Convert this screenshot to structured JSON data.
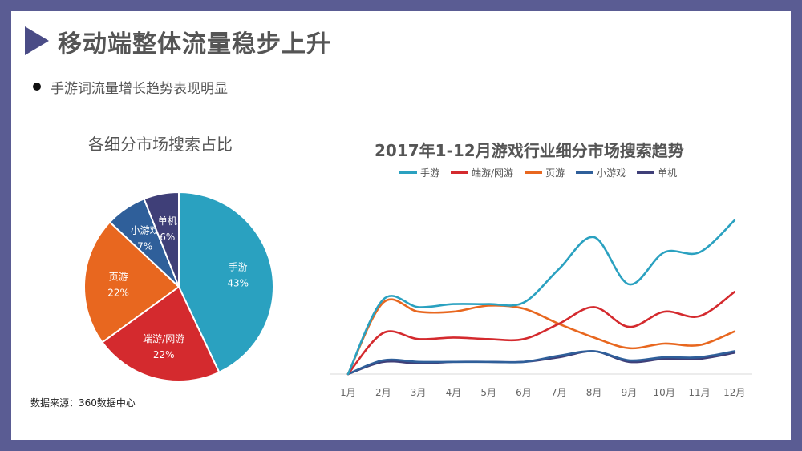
{
  "header": {
    "title": "移动端整体流量稳步上升",
    "bullet": "手游词流量增长趋势表现明显"
  },
  "footer": {
    "source": "数据来源：360数据中心"
  },
  "colors": {
    "frame": "#5a5c93",
    "marker": "#4a4c86",
    "手游": "#2aa1c0",
    "端游/网游": "#d42a2e",
    "页游": "#e8671f",
    "小游戏": "#2f5f9a",
    "单机": "#3f3f78"
  },
  "chart_data": [
    {
      "type": "pie",
      "title": "各细分市场搜索占比",
      "slices": [
        {
          "label": "手游",
          "value": 43,
          "value_label": "43%"
        },
        {
          "label": "端游/网游",
          "value": 22,
          "value_label": "22%"
        },
        {
          "label": "页游",
          "value": 22,
          "value_label": "22%"
        },
        {
          "label": "小游戏",
          "value": 7,
          "value_label": "7%"
        },
        {
          "label": "单机",
          "value": 6,
          "value_label": "6%"
        }
      ]
    },
    {
      "type": "line",
      "title": "2017年1-12月游戏行业细分市场搜索趋势",
      "categories": [
        "1月",
        "2月",
        "3月",
        "4月",
        "5月",
        "6月",
        "7月",
        "8月",
        "9月",
        "10月",
        "11月",
        "12月"
      ],
      "legend_position": "top",
      "grid": false,
      "y_axis_visible": false,
      "series": [
        {
          "name": "手游",
          "values": [
            0,
            49,
            44,
            46,
            46,
            47,
            69,
            90,
            59,
            80,
            80,
            101
          ]
        },
        {
          "name": "端游/网游",
          "values": [
            0,
            27,
            23,
            24,
            23,
            23,
            33,
            44,
            31,
            41,
            38,
            54
          ]
        },
        {
          "name": "页游",
          "values": [
            0,
            47,
            41,
            41,
            45,
            43,
            33,
            24,
            17,
            20,
            19,
            28
          ]
        },
        {
          "name": "小游戏",
          "values": [
            0,
            9,
            8,
            8,
            8,
            8,
            12,
            15,
            9,
            11,
            11,
            15
          ]
        },
        {
          "name": "单机",
          "values": [
            0,
            8,
            7,
            8,
            8,
            8,
            11,
            15,
            8,
            10,
            10,
            14
          ]
        }
      ]
    }
  ]
}
